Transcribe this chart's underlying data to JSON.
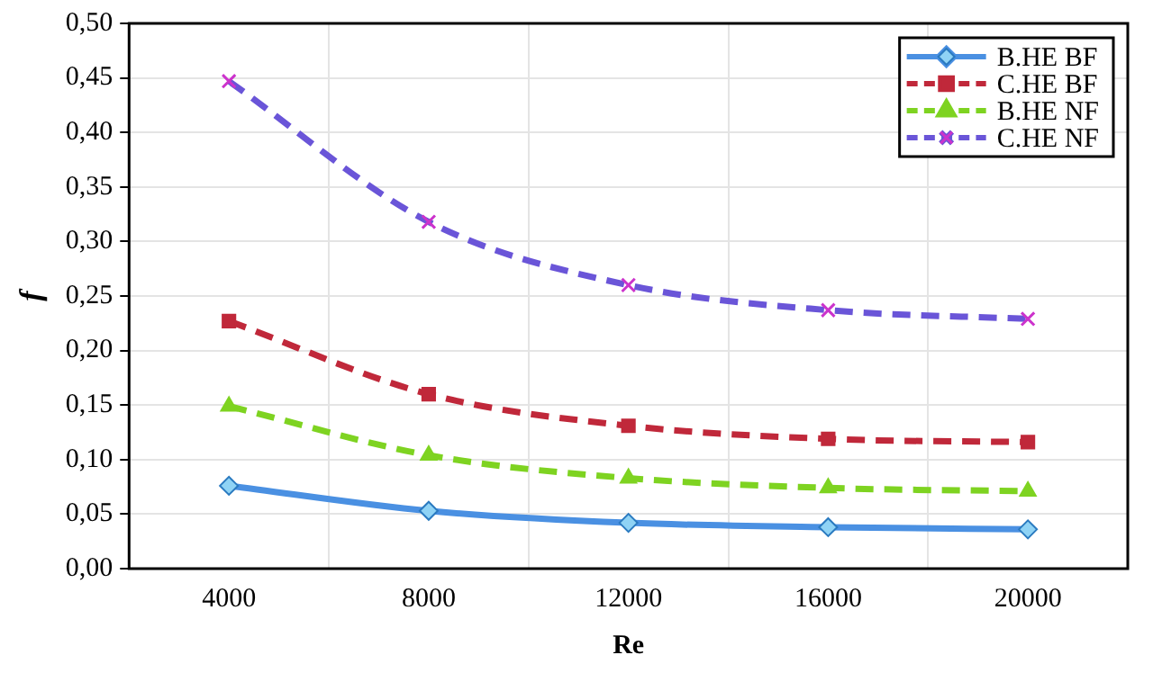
{
  "chart_data": {
    "type": "line",
    "xlabel": "Re",
    "ylabel": "f",
    "categories": [
      "4000",
      "8000",
      "12000",
      "16000",
      "20000"
    ],
    "series": [
      {
        "name": "B.HE BF",
        "color": "#4a90e2",
        "marker": "diamond",
        "line_style": "solid",
        "values": [
          0.076,
          0.053,
          0.042,
          0.038,
          0.036
        ]
      },
      {
        "name": "C.HE BF",
        "color": "#c0283a",
        "marker": "square",
        "line_style": "dashed",
        "values": [
          0.227,
          0.16,
          0.131,
          0.119,
          0.116
        ]
      },
      {
        "name": "B.HE NF",
        "color": "#7ed321",
        "marker": "triangle",
        "line_style": "dashed",
        "values": [
          0.149,
          0.104,
          0.083,
          0.074,
          0.071
        ]
      },
      {
        "name": "C.HE NF",
        "color": "#6a55d8",
        "marker": "cross",
        "line_style": "dashed",
        "values": [
          0.447,
          0.318,
          0.26,
          0.237,
          0.229
        ]
      }
    ],
    "ylim": [
      0,
      0.5
    ],
    "yticks": [
      {
        "value": 0,
        "label": "0,00"
      },
      {
        "value": 0.05,
        "label": "0,05"
      },
      {
        "value": 0.1,
        "label": "0,10"
      },
      {
        "value": 0.15,
        "label": "0,15"
      },
      {
        "value": 0.2,
        "label": "0,20"
      },
      {
        "value": 0.25,
        "label": "0,25"
      },
      {
        "value": 0.3,
        "label": "0,30"
      },
      {
        "value": 0.35,
        "label": "0,35"
      },
      {
        "value": 0.4,
        "label": "0,40"
      },
      {
        "value": 0.45,
        "label": "0,45"
      },
      {
        "value": 0.5,
        "label": "0,50"
      }
    ],
    "grid": true,
    "legend": "top right"
  }
}
